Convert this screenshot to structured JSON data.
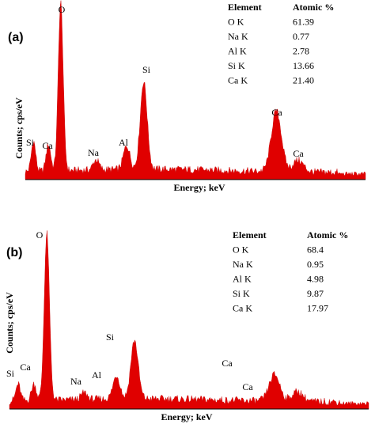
{
  "colors": {
    "spectrum": "#e00000",
    "axis": "#000000"
  },
  "chart_data": [
    {
      "type": "area",
      "panel_label": "(a)",
      "xlabel": "Energy; keV",
      "ylabel": "Counts; cps/eV",
      "table": {
        "headers": [
          "Element",
          "Atomic %"
        ],
        "rows": [
          [
            "O K",
            "61.39"
          ],
          [
            "Na K",
            "0.77"
          ],
          [
            "Al K",
            "2.78"
          ],
          [
            "Si K",
            "13.66"
          ],
          [
            "Ca K",
            "21.40"
          ]
        ]
      },
      "peaks": [
        {
          "label": "O",
          "x": 0.52,
          "height": 1.0
        },
        {
          "label": "Si",
          "x": 1.74,
          "height": 0.52
        },
        {
          "label": "Ca",
          "x": 3.69,
          "height": 0.36
        },
        {
          "label": "Si",
          "x": 0.12,
          "height": 0.18
        },
        {
          "label": "Ca",
          "x": 0.34,
          "height": 0.16
        },
        {
          "label": "Na",
          "x": 1.04,
          "height": 0.06
        },
        {
          "label": "Al",
          "x": 1.49,
          "height": 0.14
        },
        {
          "label": "Ca",
          "x": 4.01,
          "height": 0.07
        }
      ]
    },
    {
      "type": "area",
      "panel_label": "(b)",
      "xlabel": "Energy; keV",
      "ylabel": "Counts; cps/eV",
      "table": {
        "headers": [
          "Element",
          "Atomic %"
        ],
        "rows": [
          [
            "O K",
            "68.4"
          ],
          [
            "Na K",
            "0.95"
          ],
          [
            "Al K",
            "4.98"
          ],
          [
            "Si K",
            "9.87"
          ],
          [
            "Ca K",
            "17.97"
          ]
        ]
      },
      "peaks": [
        {
          "label": "O",
          "x": 0.52,
          "height": 1.0
        },
        {
          "label": "Si",
          "x": 1.74,
          "height": 0.35
        },
        {
          "label": "Ca",
          "x": 3.69,
          "height": 0.16
        },
        {
          "label": "Si",
          "x": 0.12,
          "height": 0.1
        },
        {
          "label": "Ca",
          "x": 0.34,
          "height": 0.1
        },
        {
          "label": "Na",
          "x": 1.04,
          "height": 0.04
        },
        {
          "label": "Al",
          "x": 1.49,
          "height": 0.14
        },
        {
          "label": "Ca",
          "x": 4.01,
          "height": 0.06
        }
      ]
    }
  ]
}
